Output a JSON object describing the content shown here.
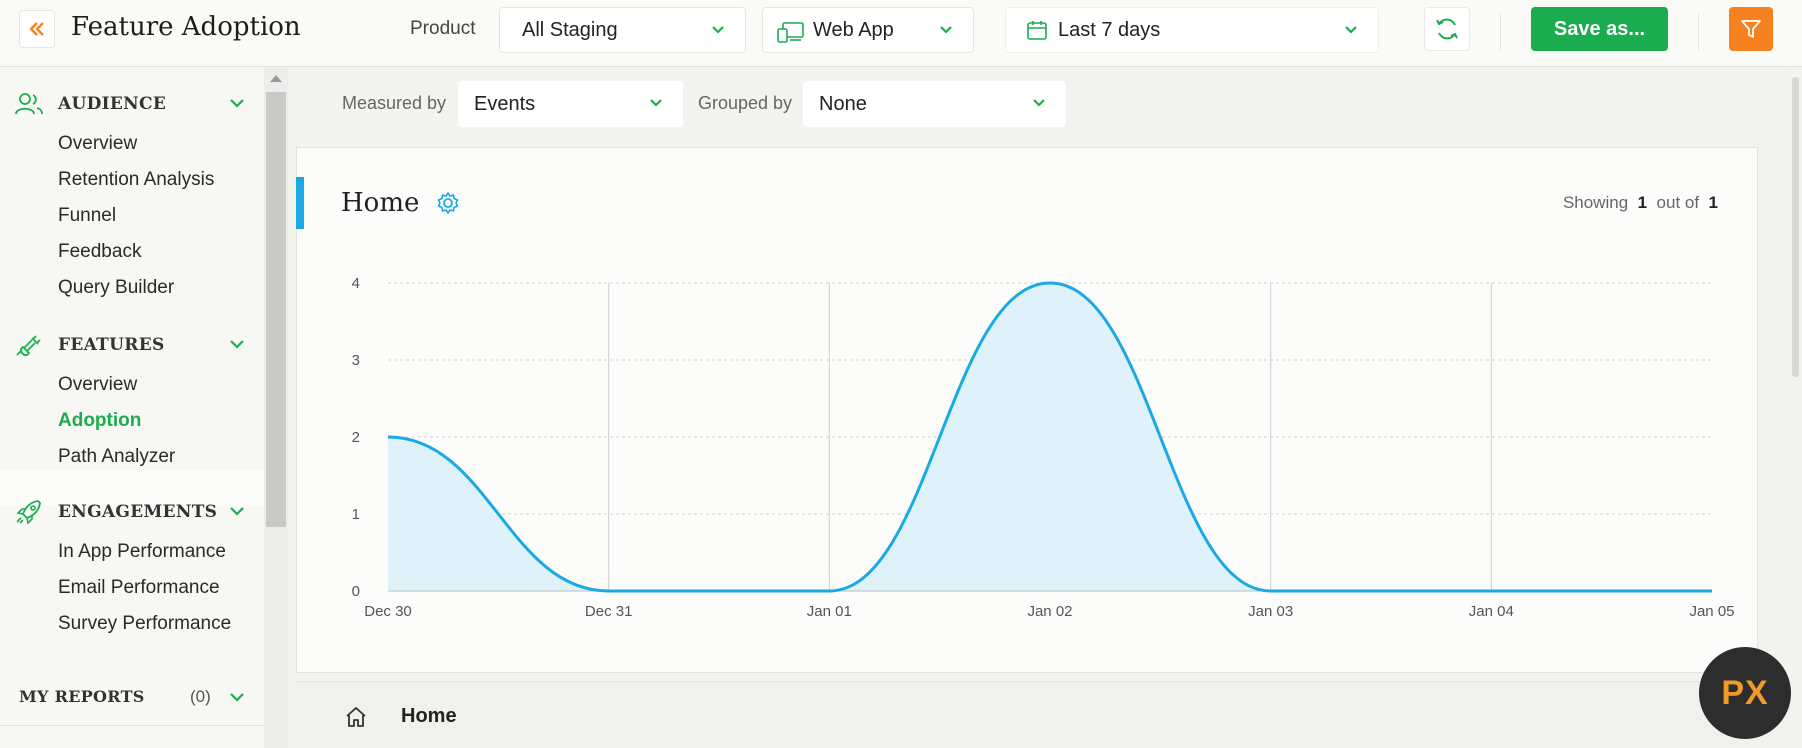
{
  "header": {
    "title": "Feature Adoption",
    "product_label": "Product",
    "product_value": "All Staging",
    "platform_value": "Web App",
    "date_range_value": "Last 7 days",
    "save_label": "Save as..."
  },
  "sidebar": {
    "sections": [
      {
        "title": "AUDIENCE",
        "icon": "users-icon",
        "items": [
          "Overview",
          "Retention Analysis",
          "Funnel",
          "Feedback",
          "Query Builder"
        ]
      },
      {
        "title": "FEATURES",
        "icon": "plug-icon",
        "items": [
          "Overview",
          "Adoption",
          "Path Analyzer"
        ]
      },
      {
        "title": "ENGAGEMENTS",
        "icon": "rocket-icon",
        "items": [
          "In App Performance",
          "Email Performance",
          "Survey Performance"
        ]
      }
    ],
    "active_item": "Adoption",
    "reports_title": "MY REPORTS",
    "reports_count": "(0)"
  },
  "filters": {
    "measured_by_label": "Measured by",
    "measured_by_value": "Events",
    "grouped_by_label": "Grouped by",
    "grouped_by_value": "None"
  },
  "card": {
    "title": "Home",
    "showing_prefix": "Showing",
    "showing_current": "1",
    "showing_mid": "out of",
    "showing_total": "1"
  },
  "chart_data": {
    "type": "area",
    "x": [
      "Dec 30",
      "Dec 31",
      "Jan 01",
      "Jan 02",
      "Jan 03",
      "Jan 04",
      "Jan 05"
    ],
    "y": [
      2,
      0,
      0,
      4,
      0,
      0,
      0
    ],
    "ylim": [
      0,
      4
    ],
    "yticks": [
      "0",
      "1",
      "2",
      "3",
      "4"
    ],
    "grid": true,
    "color": "#1aa9e5",
    "fill": "#dff2fa"
  },
  "tabs": {
    "active_label": "Home"
  },
  "badge": {
    "text": "PX"
  },
  "colors": {
    "accent_green": "#1aac4f",
    "accent_orange": "#f7811f",
    "accent_blue": "#19a9e6"
  }
}
